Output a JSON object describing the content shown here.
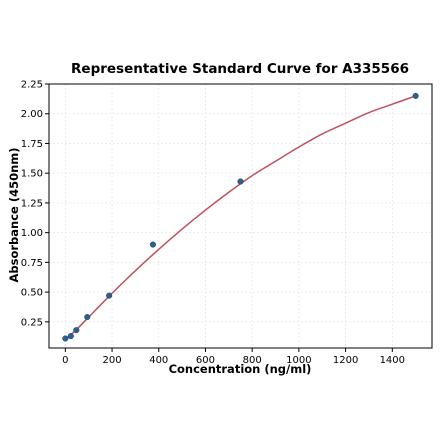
{
  "chart_data": {
    "type": "scatter",
    "title": "Representative Standard Curve for A335566",
    "xlabel": "Concentration (ng/ml)",
    "ylabel": "Absorbance (450nm)",
    "xlim": [
      -70,
      1570
    ],
    "ylim": [
      0.03,
      2.25
    ],
    "x_ticks": [
      0,
      200,
      400,
      600,
      800,
      1000,
      1200,
      1400
    ],
    "y_ticks": [
      0.25,
      0.5,
      0.75,
      1.0,
      1.25,
      1.5,
      1.75,
      2.0,
      2.25
    ],
    "x_tick_labels": [
      "0",
      "200",
      "400",
      "600",
      "800",
      "1000",
      "1200",
      "1400"
    ],
    "y_tick_labels": [
      "0.25",
      "0.50",
      "0.75",
      "1.00",
      "1.25",
      "1.50",
      "1.75",
      "2.00",
      "2.25"
    ],
    "grid": true,
    "series": [
      {
        "type": "scatter",
        "color": "#2e5f8f",
        "points": [
          {
            "x": 0,
            "y": 0.11
          },
          {
            "x": 23.4,
            "y": 0.13
          },
          {
            "x": 46.9,
            "y": 0.18
          },
          {
            "x": 93.8,
            "y": 0.29
          },
          {
            "x": 187.5,
            "y": 0.47
          },
          {
            "x": 375,
            "y": 0.9
          },
          {
            "x": 750,
            "y": 1.43
          },
          {
            "x": 1500,
            "y": 2.15
          }
        ]
      },
      {
        "type": "line",
        "color": "#c0505f",
        "points": [
          {
            "x": 0,
            "y": 0.1
          },
          {
            "x": 50,
            "y": 0.19
          },
          {
            "x": 100,
            "y": 0.29
          },
          {
            "x": 200,
            "y": 0.49
          },
          {
            "x": 300,
            "y": 0.68
          },
          {
            "x": 400,
            "y": 0.86
          },
          {
            "x": 500,
            "y": 1.03
          },
          {
            "x": 600,
            "y": 1.19
          },
          {
            "x": 700,
            "y": 1.34
          },
          {
            "x": 800,
            "y": 1.48
          },
          {
            "x": 900,
            "y": 1.6
          },
          {
            "x": 1000,
            "y": 1.72
          },
          {
            "x": 1100,
            "y": 1.83
          },
          {
            "x": 1200,
            "y": 1.92
          },
          {
            "x": 1300,
            "y": 2.01
          },
          {
            "x": 1400,
            "y": 2.08
          },
          {
            "x": 1500,
            "y": 2.15
          }
        ]
      }
    ]
  }
}
